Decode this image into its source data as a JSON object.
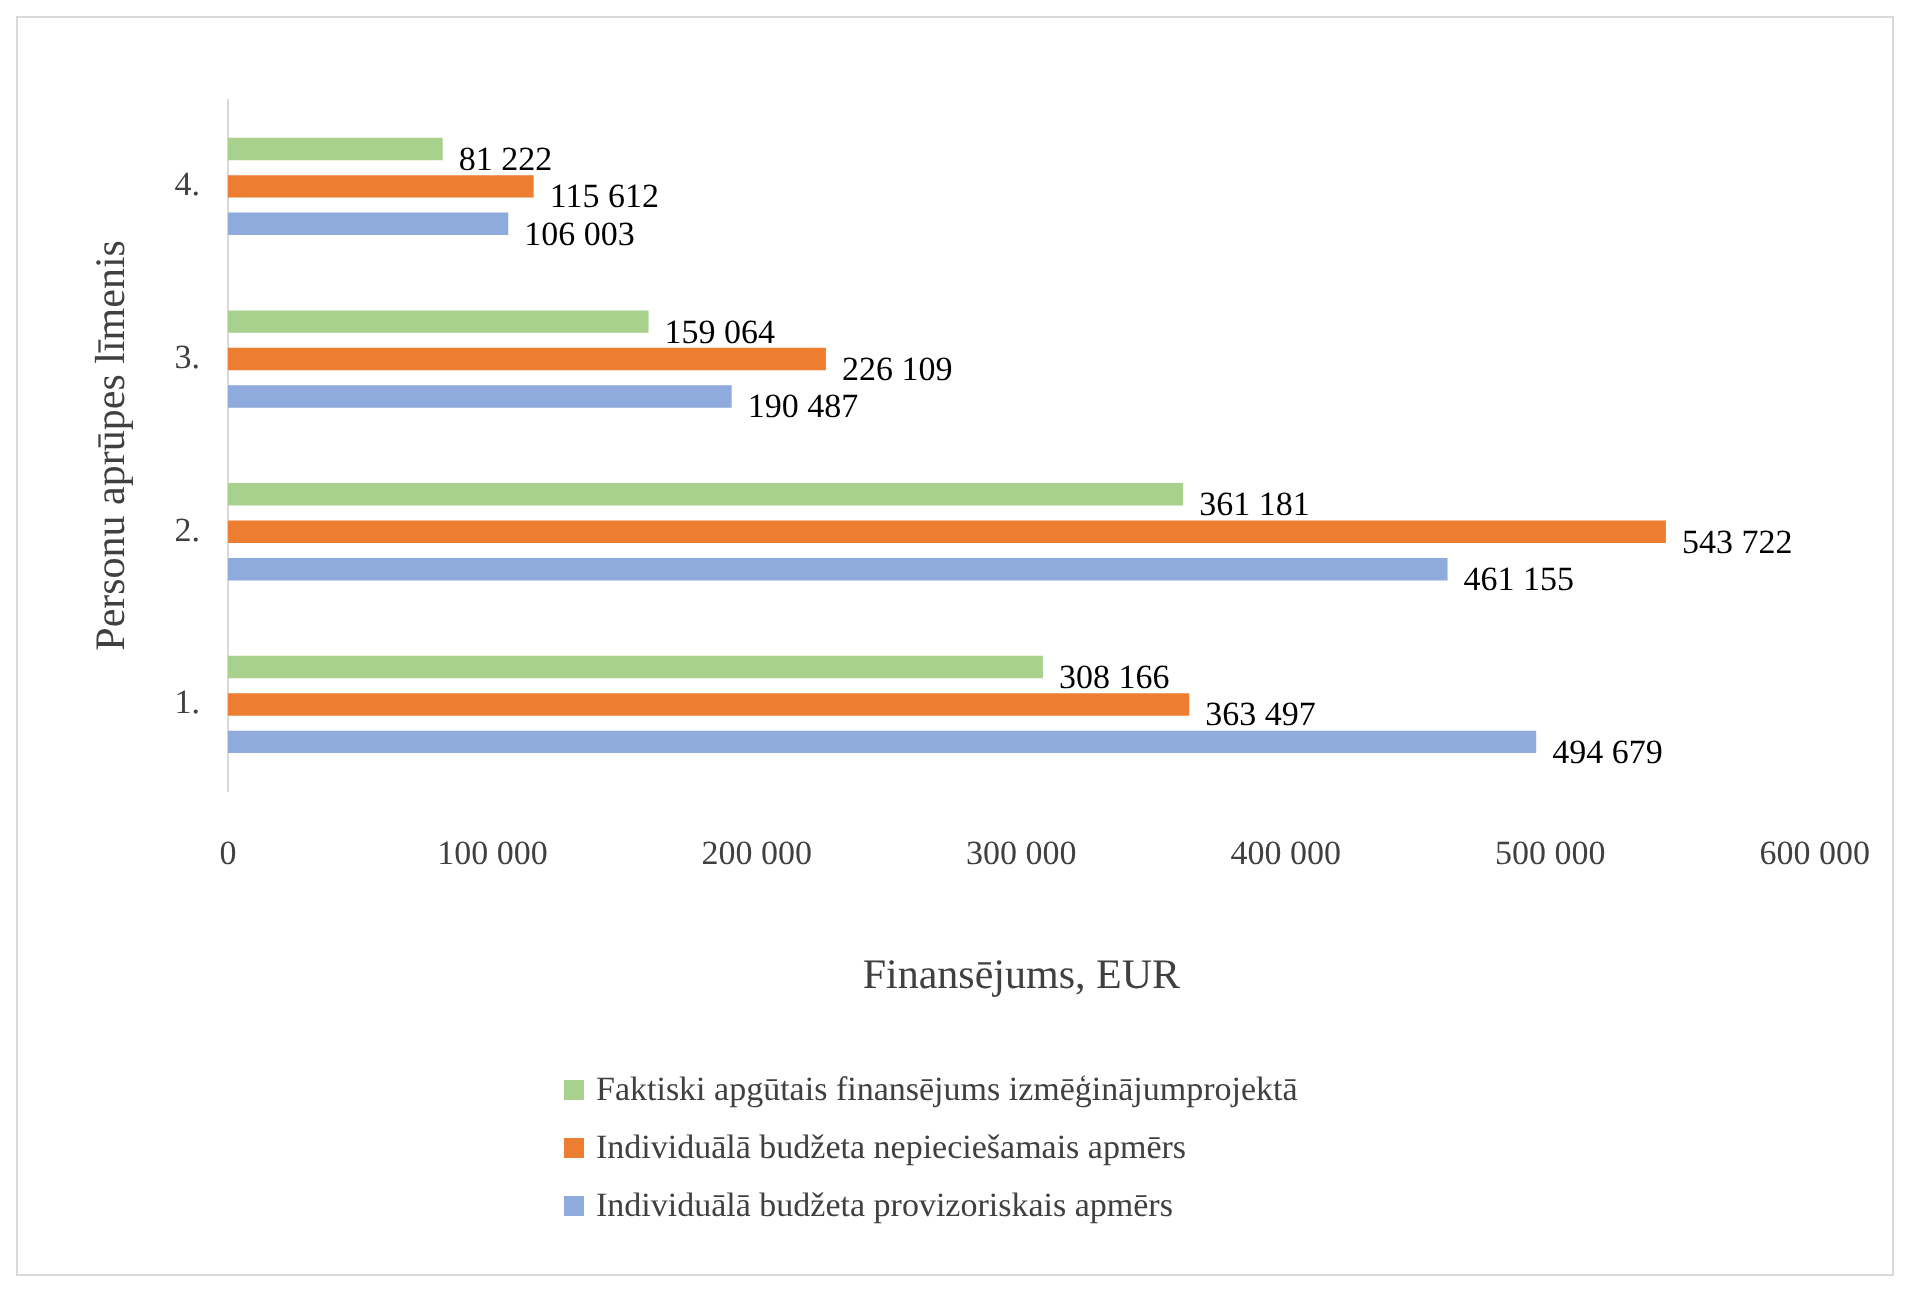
{
  "chart_data": {
    "type": "bar",
    "orientation": "horizontal",
    "xlabel": "Finansējums, EUR",
    "ylabel": "Personu aprūpes līmenis",
    "categories": [
      "4.",
      "3.",
      "2.",
      "1."
    ],
    "series": [
      {
        "name": "Faktiski apgūtais finansējums izmēģinājumprojektā",
        "color": "#a9d18e",
        "values": [
          81222,
          159064,
          361181,
          308166
        ],
        "value_labels": [
          "81 222",
          "159 064",
          "361 181",
          "308 166"
        ]
      },
      {
        "name": "Individuālā budžeta nepieciešamais apmērs",
        "color": "#ed7d31",
        "values": [
          115612,
          226109,
          543722,
          363497
        ],
        "value_labels": [
          "115 612",
          "226 109",
          "543 722",
          "363 497"
        ]
      },
      {
        "name": "Individuālā budžeta provizoriskais apmērs",
        "color": "#8faadc",
        "values": [
          106003,
          190487,
          461155,
          494679
        ],
        "value_labels": [
          "106 003",
          "190 487",
          "461 155",
          "494 679"
        ]
      }
    ],
    "xlim": [
      0,
      600000
    ],
    "xticks": [
      {
        "value": 0,
        "label": "0"
      },
      {
        "value": 100000,
        "label": "100 000"
      },
      {
        "value": 200000,
        "label": "200 000"
      },
      {
        "value": 300000,
        "label": "300 000"
      },
      {
        "value": 400000,
        "label": "400 000"
      },
      {
        "value": 500000,
        "label": "500 000"
      },
      {
        "value": 600000,
        "label": "600 000"
      }
    ],
    "grid": false,
    "legend": "bottom"
  }
}
